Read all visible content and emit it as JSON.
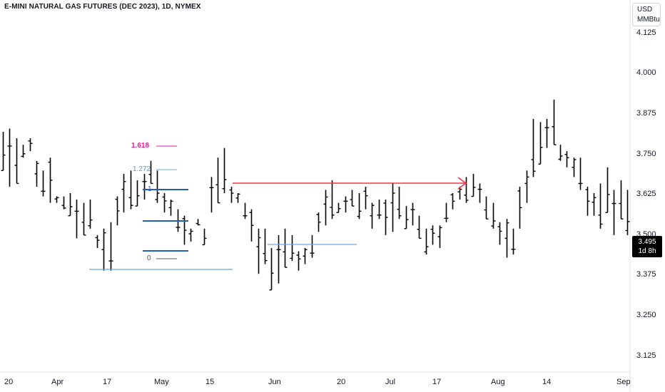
{
  "chart_data": {
    "type": "ohlc",
    "title": "E-MINI NATURAL GAS FUTURES (DEC 2023), 1D, NYMEX",
    "unit": [
      "USD",
      "MMBtu"
    ],
    "last_price": "3.495",
    "countdown": "1d 8h",
    "ylim": [
      3.08,
      4.18
    ],
    "yticks": [
      "4.125",
      "4.000",
      "3.875",
      "3.750",
      "3.625",
      "3.500",
      "3.375",
      "3.250",
      "3.125"
    ],
    "xticks": [
      "20",
      "Apr",
      "17",
      "May",
      "15",
      "Jun",
      "20",
      "Jul",
      "17",
      "Aug",
      "14",
      "Sep"
    ],
    "fib_levels": [
      {
        "label": "1.618",
        "value": 3.79,
        "color": "#e91e9c"
      },
      {
        "label": "1.272",
        "value": 3.71,
        "color": "#5b9bd5"
      },
      {
        "label": "1",
        "value": 3.65,
        "color": "#1f5fbf"
      },
      {
        "label": "0",
        "value": 3.475,
        "color": "#555555"
      }
    ],
    "bars": [
      [
        3.82,
        3.7
      ],
      [
        3.83,
        3.65
      ],
      [
        3.8,
        3.66
      ],
      [
        3.78,
        3.74
      ],
      [
        3.8,
        3.76
      ],
      [
        3.73,
        3.65
      ],
      [
        3.7,
        3.62
      ],
      [
        3.74,
        3.6
      ],
      [
        3.62,
        3.6
      ],
      [
        3.62,
        3.58
      ],
      [
        3.63,
        3.56
      ],
      [
        3.61,
        3.49
      ],
      [
        3.6,
        3.5
      ],
      [
        3.61,
        3.52
      ],
      [
        3.5,
        3.46
      ],
      [
        3.52,
        3.39
      ],
      [
        3.54,
        3.39
      ],
      [
        3.62,
        3.53
      ],
      [
        3.69,
        3.57
      ],
      [
        3.7,
        3.58
      ],
      [
        3.67,
        3.59
      ],
      [
        3.69,
        3.61
      ],
      [
        3.73,
        3.66
      ],
      [
        3.7,
        3.6
      ],
      [
        3.63,
        3.57
      ],
      [
        3.61,
        3.56
      ],
      [
        3.58,
        3.51
      ],
      [
        3.56,
        3.47
      ],
      [
        3.52,
        3.48
      ],
      [
        3.55,
        3.53
      ],
      [
        3.52,
        3.47
      ],
      [
        3.68,
        3.57
      ],
      [
        3.74,
        3.6
      ],
      [
        3.77,
        3.63
      ],
      [
        3.65,
        3.6
      ],
      [
        3.63,
        3.6
      ],
      [
        3.6,
        3.55
      ],
      [
        3.58,
        3.48
      ],
      [
        3.52,
        3.38
      ],
      [
        3.52,
        3.41
      ],
      [
        3.46,
        3.33
      ],
      [
        3.5,
        3.35
      ],
      [
        3.52,
        3.4
      ],
      [
        3.5,
        3.42
      ],
      [
        3.45,
        3.39
      ],
      [
        3.46,
        3.41
      ],
      [
        3.5,
        3.43
      ],
      [
        3.57,
        3.51
      ],
      [
        3.64,
        3.53
      ],
      [
        3.67,
        3.55
      ],
      [
        3.6,
        3.57
      ],
      [
        3.62,
        3.57
      ],
      [
        3.64,
        3.59
      ],
      [
        3.63,
        3.55
      ],
      [
        3.65,
        3.58
      ],
      [
        3.6,
        3.52
      ],
      [
        3.61,
        3.55
      ],
      [
        3.61,
        3.5
      ],
      [
        3.66,
        3.51
      ],
      [
        3.65,
        3.55
      ],
      [
        3.59,
        3.52
      ],
      [
        3.6,
        3.53
      ],
      [
        3.56,
        3.49
      ],
      [
        3.52,
        3.44
      ],
      [
        3.53,
        3.47
      ],
      [
        3.53,
        3.46
      ],
      [
        3.6,
        3.54
      ],
      [
        3.63,
        3.58
      ],
      [
        3.65,
        3.61
      ],
      [
        3.68,
        3.6
      ],
      [
        3.69,
        3.62
      ],
      [
        3.66,
        3.6
      ],
      [
        3.62,
        3.55
      ],
      [
        3.6,
        3.52
      ],
      [
        3.54,
        3.47
      ],
      [
        3.55,
        3.43
      ],
      [
        3.52,
        3.44
      ],
      [
        3.65,
        3.52
      ],
      [
        3.7,
        3.6
      ],
      [
        3.86,
        3.68
      ],
      [
        3.85,
        3.72
      ],
      [
        3.86,
        3.77
      ],
      [
        3.92,
        3.78
      ],
      [
        3.78,
        3.73
      ],
      [
        3.76,
        3.71
      ],
      [
        3.74,
        3.68
      ],
      [
        3.74,
        3.64
      ],
      [
        3.65,
        3.56
      ],
      [
        3.63,
        3.56
      ],
      [
        3.66,
        3.52
      ],
      [
        3.71,
        3.57
      ],
      [
        3.64,
        3.5
      ],
      [
        3.67,
        3.55
      ],
      [
        3.64,
        3.5
      ]
    ]
  }
}
